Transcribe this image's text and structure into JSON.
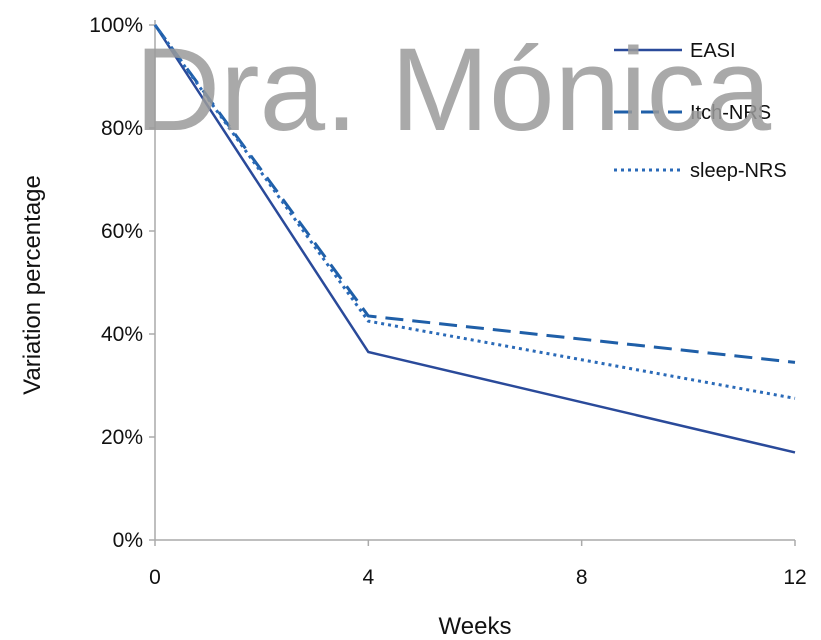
{
  "chart_data": {
    "type": "line",
    "xlabel": "Weeks",
    "ylabel": "Variation percentage",
    "x": [
      0,
      4,
      12
    ],
    "x_ticks": [
      "0",
      "4",
      "8",
      "12"
    ],
    "x_tick_values": [
      0,
      4,
      8,
      12
    ],
    "xlim": [
      0,
      12
    ],
    "ylim": [
      0,
      100
    ],
    "y_ticks": [
      "0%",
      "20%",
      "40%",
      "60%",
      "80%",
      "100%"
    ],
    "y_tick_values": [
      0,
      20,
      40,
      60,
      80,
      100
    ],
    "grid": false,
    "legend_position": "top-right",
    "series": [
      {
        "name": "EASI",
        "values": [
          100,
          36.5,
          17
        ],
        "color": "#2a4a9a",
        "style": "solid"
      },
      {
        "name": "Itch-NRS",
        "values": [
          100,
          43.5,
          34.5
        ],
        "color": "#1f5fa8",
        "style": "dashed"
      },
      {
        "name": "sleep-NRS",
        "values": [
          100,
          42.5,
          27.5
        ],
        "color": "#2a6ab8",
        "style": "dotted"
      }
    ]
  },
  "watermark": {
    "text": "Dra. Mónica"
  }
}
